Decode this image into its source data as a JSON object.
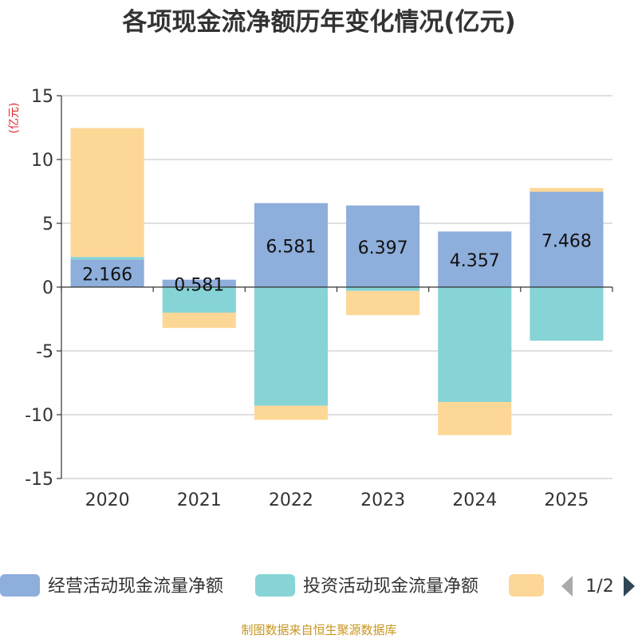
{
  "chart_data": {
    "type": "bar",
    "stacked": true,
    "title": "各项现金流净额历年变化情况(亿元)",
    "ylabel": "(亿元)",
    "categories": [
      "2020",
      "2021",
      "2022",
      "2023",
      "2024",
      "2025"
    ],
    "ylim": [
      -15,
      15
    ],
    "yticks": [
      15,
      10,
      5,
      0,
      -5,
      -10,
      -15
    ],
    "grid": true,
    "series": [
      {
        "name": "经营活动现金流量净额",
        "color": "#8eaedb",
        "values": [
          2.166,
          0.581,
          6.581,
          6.397,
          4.357,
          7.468
        ],
        "labels": [
          "2.166",
          "0.581",
          "6.581",
          "6.397",
          "4.357",
          "7.468"
        ]
      },
      {
        "name": "投资活动现金流量净额",
        "color": "#86d4d6",
        "values": [
          0.2,
          -2.0,
          -9.3,
          -0.3,
          -9.0,
          -4.2
        ]
      },
      {
        "name": "",
        "color": "#fdd796",
        "values": [
          10.1,
          -1.2,
          -1.1,
          -1.9,
          -2.6,
          0.3
        ]
      }
    ],
    "legend": {
      "position": "bottom",
      "page": "1/2"
    },
    "source": "制图数据来自恒生聚源数据库"
  }
}
